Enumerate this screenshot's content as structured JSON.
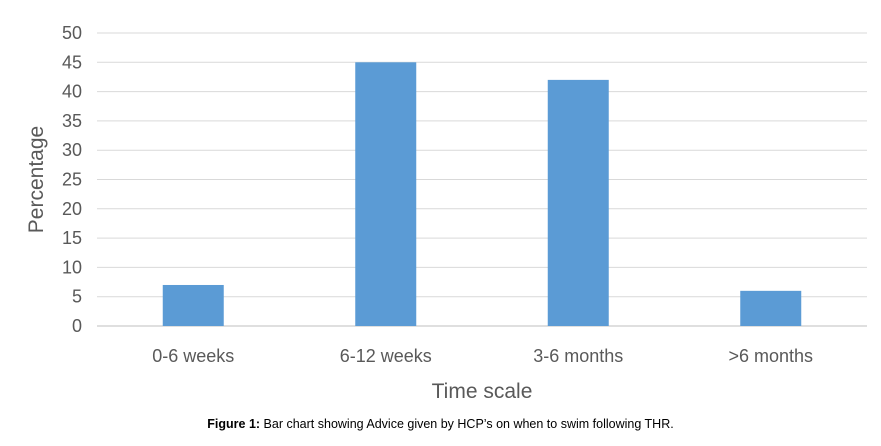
{
  "chart_data": {
    "type": "bar",
    "categories": [
      "0-6 weeks",
      "6-12 weeks",
      "3-6 months",
      ">6 months"
    ],
    "values": [
      7,
      45,
      42,
      6
    ],
    "xlabel": "Time scale",
    "ylabel": "Percentage",
    "ylim": [
      0,
      50
    ],
    "yticks": [
      0,
      5,
      10,
      15,
      20,
      25,
      30,
      35,
      40,
      45,
      50
    ],
    "grid": true,
    "legend": "none",
    "bar_color": "#5B9BD5"
  },
  "caption": {
    "label": "Figure 1:",
    "text": " Bar chart showing Advice given by HCP’s on when to swim following THR."
  }
}
